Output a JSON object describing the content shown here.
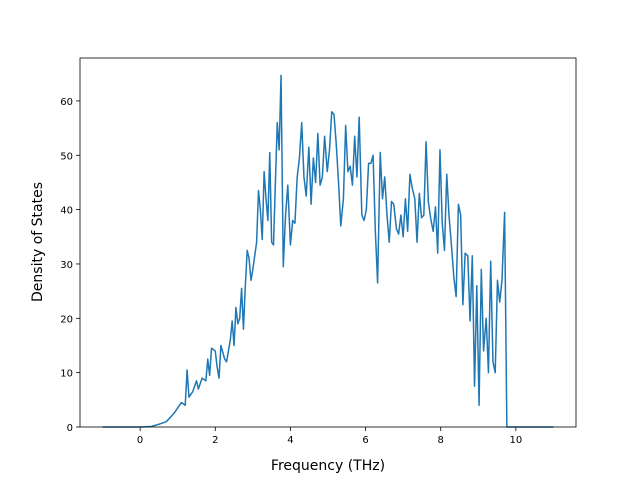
{
  "chart_data": {
    "type": "line",
    "xlabel": "Frequency (THz)",
    "ylabel": "Density of States",
    "x": [
      -1,
      0,
      0.3,
      0.5,
      0.7,
      0.9,
      1.0,
      1.1,
      1.2,
      1.25,
      1.3,
      1.4,
      1.5,
      1.55,
      1.65,
      1.75,
      1.8,
      1.85,
      1.9,
      2.0,
      2.05,
      2.1,
      2.15,
      2.25,
      2.3,
      2.4,
      2.45,
      2.5,
      2.55,
      2.6,
      2.65,
      2.7,
      2.75,
      2.8,
      2.85,
      2.9,
      2.95,
      3.0,
      3.1,
      3.15,
      3.2,
      3.25,
      3.3,
      3.35,
      3.4,
      3.45,
      3.5,
      3.55,
      3.6,
      3.65,
      3.7,
      3.75,
      3.81,
      3.87,
      3.93,
      4.0,
      4.06,
      4.12,
      4.18,
      4.24,
      4.3,
      4.36,
      4.42,
      4.49,
      4.55,
      4.61,
      4.67,
      4.73,
      4.79,
      4.85,
      4.91,
      4.98,
      5.04,
      5.1,
      5.16,
      5.22,
      5.28,
      5.34,
      5.41,
      5.47,
      5.53,
      5.59,
      5.65,
      5.71,
      5.77,
      5.83,
      5.9,
      5.96,
      6.02,
      6.08,
      6.14,
      6.2,
      6.26,
      6.32,
      6.39,
      6.45,
      6.51,
      6.57,
      6.63,
      6.69,
      6.75,
      6.82,
      6.88,
      6.94,
      7.0,
      7.06,
      7.12,
      7.18,
      7.24,
      7.31,
      7.37,
      7.43,
      7.49,
      7.55,
      7.61,
      7.67,
      7.73,
      7.8,
      7.86,
      7.92,
      7.98,
      8.04,
      8.1,
      8.16,
      8.22,
      8.29,
      8.35,
      8.41,
      8.47,
      8.53,
      8.59,
      8.65,
      8.72,
      8.78,
      8.84,
      8.9,
      8.96,
      9.02,
      9.08,
      9.14,
      9.21,
      9.27,
      9.33,
      9.39,
      9.45,
      9.51,
      9.57,
      9.63,
      9.7,
      9.76,
      11.0
    ],
    "series": [
      {
        "color": "#1f77b4",
        "values": [
          0,
          0,
          0.1,
          0.5,
          1,
          2.5,
          3.5,
          4.5,
          4,
          10.5,
          5.5,
          6.5,
          8.5,
          7,
          9,
          8.5,
          12.5,
          9.5,
          14.5,
          14,
          11,
          9,
          15,
          12.5,
          12,
          16,
          19.5,
          15,
          22,
          19,
          20,
          25.5,
          18,
          26,
          32.5,
          31,
          27,
          29,
          34,
          43.5,
          40,
          34.5,
          47,
          42,
          38,
          50.5,
          34,
          33.5,
          45,
          56,
          51,
          64.7,
          29.5,
          39,
          44.5,
          33.5,
          38,
          37.5,
          46,
          49.5,
          56,
          46,
          42.5,
          51.5,
          41,
          49.5,
          45,
          54,
          44.5,
          46,
          53.5,
          47,
          51,
          58,
          57.5,
          52,
          45,
          37,
          42,
          55.5,
          47,
          48,
          44.5,
          53.5,
          46,
          57,
          39,
          38,
          40,
          48.5,
          48.5,
          50,
          36,
          26.5,
          50.5,
          42,
          46,
          39,
          34,
          41.5,
          41,
          36.5,
          35.5,
          39,
          35,
          42,
          36,
          46.5,
          44,
          42,
          34,
          43,
          38.5,
          39,
          52.5,
          41.5,
          38.5,
          36,
          40.5,
          32,
          51,
          37.5,
          32.5,
          46.5,
          39,
          33,
          27.5,
          24,
          41,
          39,
          22.5,
          32,
          31.5,
          19.5,
          31.5,
          7.5,
          26,
          4,
          29,
          14,
          20,
          10,
          30.5,
          12,
          10,
          27,
          23,
          27,
          39.5,
          0,
          0
        ]
      }
    ],
    "xlim": [
      -1.6,
      11.6
    ],
    "ylim": [
      0,
      67.9
    ],
    "xticks": [
      0,
      2,
      4,
      6,
      8,
      10
    ],
    "yticks": [
      0,
      10,
      20,
      30,
      40,
      50,
      60
    ],
    "grid": false
  }
}
